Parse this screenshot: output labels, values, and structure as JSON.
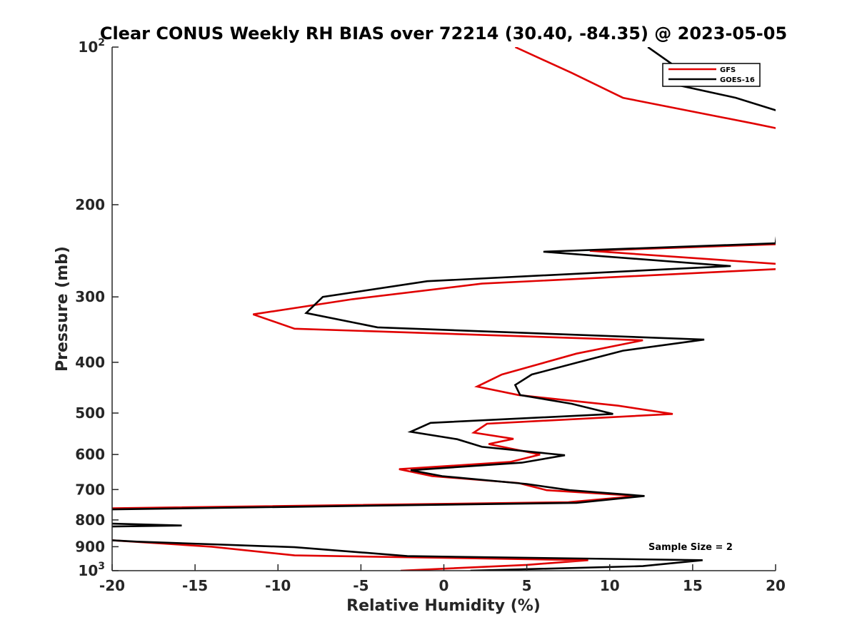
{
  "chart_data": {
    "type": "line",
    "title": "Clear CONUS Weekly RH BIAS over 72214 (30.40, -84.35) @ 2023-05-05",
    "xlabel": "Relative Humidity (%)",
    "ylabel": "Pressure (mb)",
    "xlim": [
      -20,
      20
    ],
    "ylim": [
      100,
      1000
    ],
    "yscale": "log",
    "y_reversed": true,
    "grid": false,
    "x_ticks": [
      -20,
      -15,
      -10,
      -5,
      0,
      5,
      10,
      15,
      20
    ],
    "x_tick_labels": [
      "-20",
      "-15",
      "-10",
      "-5",
      "0",
      "5",
      "10",
      "15",
      "20"
    ],
    "y_ticks": [
      {
        "value": 100,
        "base": "10",
        "exp": "2"
      },
      {
        "value": 200,
        "label": "200"
      },
      {
        "value": 300,
        "label": "300"
      },
      {
        "value": 400,
        "label": "400"
      },
      {
        "value": 500,
        "label": "500"
      },
      {
        "value": 600,
        "label": "600"
      },
      {
        "value": 700,
        "label": "700"
      },
      {
        "value": 800,
        "label": "800"
      },
      {
        "value": 900,
        "label": "900"
      },
      {
        "value": 1000,
        "base": "10",
        "exp": "3"
      }
    ],
    "legend_position": "top-right",
    "annotation": "Sample Size = 2",
    "series": [
      {
        "name": "GFS",
        "color": "#e00000",
        "points": [
          [
            4.3,
            100
          ],
          [
            7.7,
            112
          ],
          [
            10.8,
            125
          ],
          [
            18.7,
            140
          ],
          [
            21.0,
            145
          ],
          [
            20.0,
            238
          ],
          [
            8.8,
            245
          ],
          [
            20.5,
            260
          ],
          [
            20.5,
            265
          ],
          [
            2.3,
            283
          ],
          [
            -5.5,
            303
          ],
          [
            -11.5,
            324
          ],
          [
            -9.0,
            345
          ],
          [
            12.0,
            363
          ],
          [
            8.0,
            385
          ],
          [
            3.5,
            422
          ],
          [
            2.0,
            445
          ],
          [
            4.5,
            462
          ],
          [
            10.5,
            484
          ],
          [
            13.8,
            502
          ],
          [
            2.6,
            524
          ],
          [
            1.8,
            545
          ],
          [
            4.2,
            560
          ],
          [
            2.7,
            573
          ],
          [
            5.8,
            600
          ],
          [
            4.0,
            620
          ],
          [
            -2.7,
            640
          ],
          [
            -0.7,
            660
          ],
          [
            4.5,
            680
          ],
          [
            6.2,
            702
          ],
          [
            11.7,
            720
          ],
          [
            7.5,
            740
          ],
          [
            -20.0,
            760
          ],
          [
            -22.0,
            775
          ],
          [
            -22.0,
            820
          ],
          [
            -21.0,
            823
          ],
          [
            -20.5,
            830
          ],
          [
            -22.0,
            835
          ],
          [
            -22.0,
            870
          ],
          [
            -20.0,
            875
          ],
          [
            -14.0,
            900
          ],
          [
            -9.0,
            935
          ],
          [
            8.7,
            955
          ],
          [
            5.0,
            975
          ],
          [
            -2.6,
            1000
          ]
        ]
      },
      {
        "name": "GOES-16",
        "color": "#000000",
        "points": [
          [
            12.3,
            100
          ],
          [
            13.8,
            108
          ],
          [
            14.0,
            118
          ],
          [
            17.6,
            125
          ],
          [
            21.0,
            135
          ],
          [
            20.0,
            237
          ],
          [
            6.0,
            246
          ],
          [
            17.3,
            262
          ],
          [
            -1.0,
            280
          ],
          [
            -7.3,
            300
          ],
          [
            -8.3,
            322
          ],
          [
            -4.0,
            343
          ],
          [
            15.7,
            362
          ],
          [
            10.8,
            380
          ],
          [
            8.1,
            400
          ],
          [
            5.3,
            422
          ],
          [
            4.3,
            442
          ],
          [
            4.6,
            462
          ],
          [
            7.7,
            480
          ],
          [
            10.2,
            502
          ],
          [
            -0.8,
            522
          ],
          [
            -2.0,
            543
          ],
          [
            0.8,
            561
          ],
          [
            2.3,
            580
          ],
          [
            7.3,
            602
          ],
          [
            4.7,
            622
          ],
          [
            -2.0,
            643
          ],
          [
            -0.1,
            660
          ],
          [
            5.0,
            683
          ],
          [
            7.6,
            702
          ],
          [
            12.1,
            720
          ],
          [
            8.0,
            742
          ],
          [
            -20.5,
            764
          ],
          [
            -22.0,
            770
          ],
          [
            -22.0,
            810
          ],
          [
            -15.8,
            820
          ],
          [
            -22.0,
            825
          ],
          [
            -22.0,
            868
          ],
          [
            -18.5,
            880
          ],
          [
            -9.0,
            902
          ],
          [
            -4.6,
            925
          ],
          [
            -2.2,
            938
          ],
          [
            15.6,
            955
          ],
          [
            12.0,
            980
          ],
          [
            1.6,
            1000
          ]
        ]
      }
    ]
  }
}
